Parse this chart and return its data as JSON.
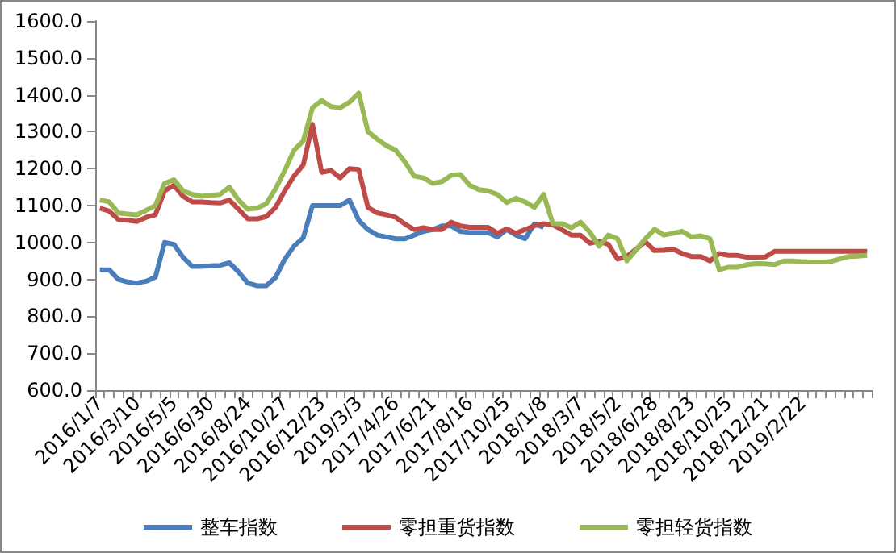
{
  "chart_data": {
    "type": "line",
    "categories": [
      "2016/1/7",
      null,
      null,
      null,
      "2016/3/10",
      null,
      null,
      null,
      "2016/5/5",
      null,
      null,
      null,
      "2016/6/30",
      null,
      null,
      null,
      "2016/8/24",
      null,
      null,
      null,
      "2016/10/27",
      null,
      null,
      null,
      "2016/12/23",
      null,
      null,
      null,
      "2019/3/3",
      null,
      null,
      null,
      "2017/4/26",
      null,
      null,
      null,
      "2017/6/21",
      null,
      null,
      null,
      "2017/8/16",
      null,
      null,
      null,
      "2017/10/25",
      null,
      null,
      null,
      "2018/1/8",
      null,
      null,
      null,
      "2018/3/7",
      null,
      null,
      null,
      "2018/5/2",
      null,
      null,
      null,
      "2018/6/28",
      null,
      null,
      null,
      "2018/8/23",
      null,
      null,
      null,
      "2018/10/25",
      null,
      null,
      null,
      "2018/12/21",
      null,
      null,
      null,
      "2019/2/22",
      null,
      null,
      null,
      null,
      null,
      null,
      null
    ],
    "series": [
      {
        "name": "整车指数",
        "color": "#4a7ebb",
        "values": [
          926,
          926,
          900,
          893,
          890,
          895,
          906,
          1000,
          995,
          960,
          935,
          935,
          937,
          938,
          945,
          920,
          890,
          883,
          883,
          905,
          955,
          990,
          1013,
          1100,
          1100,
          1100,
          1100,
          1115,
          1060,
          1035,
          1020,
          1015,
          1010,
          1010,
          1020,
          1030,
          1035,
          1045,
          1045,
          1030,
          1027,
          1027,
          1027,
          1015,
          1035,
          1020,
          1010,
          1050,
          1041,
          null,
          null,
          null,
          null,
          null,
          null,
          null,
          null,
          null,
          null,
          null,
          null,
          null,
          null,
          null,
          null,
          null,
          null,
          null,
          null,
          null,
          null,
          null,
          null,
          null,
          null,
          null,
          null,
          null,
          null,
          null,
          null,
          null,
          null,
          null
        ]
      },
      {
        "name": "零担重货指数",
        "color": "#be4b48",
        "values": [
          1093,
          1085,
          1062,
          1060,
          1057,
          1068,
          1075,
          1140,
          1155,
          1125,
          1110,
          1110,
          1108,
          1107,
          1115,
          1090,
          1064,
          1064,
          1070,
          1095,
          1140,
          1180,
          1210,
          1320,
          1190,
          1195,
          1175,
          1200,
          1198,
          1095,
          1080,
          1075,
          1068,
          1050,
          1035,
          1040,
          1035,
          1035,
          1055,
          1045,
          1041,
          1041,
          1041,
          1025,
          1037,
          1025,
          1035,
          1045,
          1051,
          1048,
          1034,
          1020,
          1020,
          998,
          1003,
          995,
          955,
          962,
          982,
          1002,
          978,
          979,
          982,
          970,
          962,
          962,
          950,
          970,
          965,
          965,
          960,
          960,
          961,
          976,
          976,
          976,
          976,
          976,
          976,
          976,
          976,
          976,
          976,
          976
        ]
      },
      {
        "name": "零担轻货指数",
        "color": "#98b954",
        "values": [
          1115,
          1110,
          1080,
          1077,
          1075,
          1087,
          1100,
          1160,
          1170,
          1140,
          1130,
          1125,
          1128,
          1130,
          1150,
          1115,
          1090,
          1093,
          1105,
          1145,
          1195,
          1250,
          1275,
          1365,
          1385,
          1368,
          1365,
          1380,
          1405,
          1300,
          1280,
          1262,
          1250,
          1218,
          1180,
          1175,
          1160,
          1165,
          1182,
          1184,
          1155,
          1143,
          1140,
          1130,
          1108,
          1120,
          1110,
          1095,
          1130,
          1051,
          1051,
          1040,
          1055,
          1028,
          990,
          1020,
          1010,
          950,
          980,
          1010,
          1036,
          1020,
          1025,
          1030,
          1015,
          1018,
          1010,
          926,
          933,
          933,
          940,
          943,
          942,
          940,
          950,
          950,
          948,
          947,
          947,
          948,
          955,
          962,
          963,
          965
        ]
      }
    ],
    "ylim": [
      600,
      1600
    ],
    "yticks": [
      {
        "value": 600,
        "label": "600.0"
      },
      {
        "value": 700,
        "label": "700.0"
      },
      {
        "value": 800,
        "label": "800.0"
      },
      {
        "value": 900,
        "label": "900.0"
      },
      {
        "value": 1000,
        "label": "1000.0"
      },
      {
        "value": 1100,
        "label": "1100.0"
      },
      {
        "value": 1200,
        "label": "1200.0"
      },
      {
        "value": 1300,
        "label": "1300.0"
      },
      {
        "value": 1400,
        "label": "1400.0"
      },
      {
        "value": 1500,
        "label": "1500.0"
      },
      {
        "value": 1600,
        "label": "1600.0"
      }
    ],
    "grid": false,
    "legend": "bottom",
    "marker": "none",
    "line_style": "solid"
  }
}
